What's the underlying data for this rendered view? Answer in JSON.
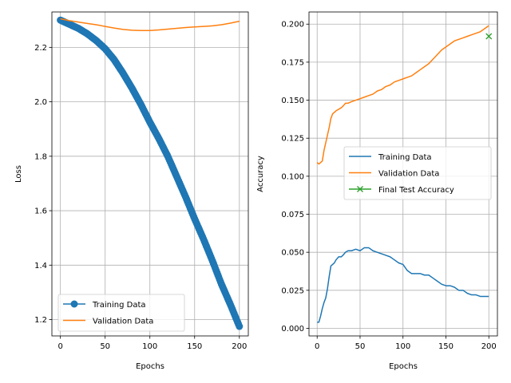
{
  "chart_data": [
    {
      "type": "line",
      "xlabel": "Epochs",
      "ylabel": "Loss",
      "xlim": [
        -9.5,
        210
      ],
      "ylim": [
        1.14,
        2.33
      ],
      "xticks": [
        0,
        50,
        100,
        150,
        200
      ],
      "yticks": [
        1.2,
        1.4,
        1.6,
        1.8,
        2.0,
        2.2
      ],
      "xtick_labels": [
        "0",
        "50",
        "100",
        "150",
        "200"
      ],
      "ytick_labels": [
        "1.2",
        "1.4",
        "1.6",
        "1.8",
        "2.0",
        "2.2"
      ],
      "grid": true,
      "legend_position": "lower-left",
      "series": [
        {
          "name": "Training Data",
          "color": "#1f77b4",
          "style": "line-circle-markers",
          "x": [
            0,
            10,
            20,
            30,
            40,
            50,
            60,
            70,
            80,
            90,
            100,
            110,
            120,
            130,
            140,
            150,
            160,
            170,
            180,
            190,
            200
          ],
          "y": [
            2.3,
            2.285,
            2.27,
            2.25,
            2.225,
            2.195,
            2.155,
            2.105,
            2.05,
            1.99,
            1.925,
            1.865,
            1.8,
            1.725,
            1.65,
            1.57,
            1.495,
            1.415,
            1.33,
            1.255,
            1.175
          ]
        },
        {
          "name": "Validation Data",
          "color": "#ff7f0e",
          "style": "line",
          "x": [
            0,
            10,
            20,
            30,
            40,
            50,
            60,
            70,
            80,
            90,
            100,
            110,
            120,
            130,
            140,
            150,
            160,
            170,
            180,
            190,
            200
          ],
          "y": [
            2.305,
            2.298,
            2.293,
            2.288,
            2.283,
            2.277,
            2.271,
            2.266,
            2.263,
            2.262,
            2.262,
            2.264,
            2.267,
            2.27,
            2.273,
            2.275,
            2.277,
            2.279,
            2.283,
            2.289,
            2.296
          ]
        }
      ]
    },
    {
      "type": "line",
      "xlabel": "Epochs",
      "ylabel": "Accuracy",
      "xlim": [
        -9.5,
        210
      ],
      "ylim": [
        -0.005,
        0.208
      ],
      "xticks": [
        0,
        50,
        100,
        150,
        200
      ],
      "yticks": [
        0.0,
        0.025,
        0.05,
        0.075,
        0.1,
        0.125,
        0.15,
        0.175,
        0.2
      ],
      "xtick_labels": [
        "0",
        "50",
        "100",
        "150",
        "200"
      ],
      "ytick_labels": [
        "0.000",
        "0.025",
        "0.050",
        "0.075",
        "0.100",
        "0.125",
        "0.150",
        "0.175",
        "0.200"
      ],
      "grid": true,
      "legend_position": "center-right",
      "series": [
        {
          "name": "Training Data",
          "color": "#1f77b4",
          "style": "line",
          "x": [
            0,
            2,
            4,
            6,
            8,
            10,
            12,
            14,
            16,
            18,
            20,
            22,
            25,
            28,
            30,
            33,
            36,
            40,
            45,
            50,
            55,
            60,
            65,
            70,
            75,
            80,
            85,
            90,
            95,
            100,
            105,
            110,
            115,
            120,
            125,
            130,
            135,
            140,
            145,
            150,
            155,
            160,
            165,
            170,
            175,
            180,
            185,
            190,
            195,
            200
          ],
          "y": [
            0.004,
            0.004,
            0.008,
            0.013,
            0.017,
            0.02,
            0.026,
            0.034,
            0.041,
            0.042,
            0.043,
            0.045,
            0.047,
            0.047,
            0.048,
            0.05,
            0.051,
            0.051,
            0.052,
            0.051,
            0.053,
            0.053,
            0.051,
            0.05,
            0.049,
            0.048,
            0.047,
            0.045,
            0.043,
            0.042,
            0.038,
            0.036,
            0.036,
            0.036,
            0.035,
            0.035,
            0.033,
            0.031,
            0.029,
            0.028,
            0.028,
            0.027,
            0.025,
            0.025,
            0.023,
            0.022,
            0.022,
            0.021,
            0.021,
            0.021
          ]
        },
        {
          "name": "Validation Data",
          "color": "#ff7f0e",
          "style": "line",
          "x": [
            0,
            2,
            4,
            6,
            8,
            10,
            12,
            14,
            16,
            18,
            20,
            22,
            25,
            28,
            30,
            33,
            36,
            40,
            45,
            50,
            55,
            60,
            65,
            70,
            75,
            80,
            85,
            90,
            95,
            100,
            105,
            110,
            115,
            120,
            125,
            130,
            135,
            140,
            145,
            150,
            155,
            160,
            165,
            170,
            175,
            180,
            185,
            190,
            195,
            200
          ],
          "y": [
            0.109,
            0.108,
            0.109,
            0.11,
            0.117,
            0.122,
            0.127,
            0.132,
            0.138,
            0.141,
            0.142,
            0.143,
            0.144,
            0.145,
            0.146,
            0.148,
            0.148,
            0.149,
            0.15,
            0.151,
            0.152,
            0.153,
            0.154,
            0.156,
            0.157,
            0.159,
            0.16,
            0.162,
            0.163,
            0.164,
            0.165,
            0.166,
            0.168,
            0.17,
            0.172,
            0.174,
            0.177,
            0.18,
            0.183,
            0.185,
            0.187,
            0.189,
            0.19,
            0.191,
            0.192,
            0.193,
            0.194,
            0.195,
            0.197,
            0.199
          ]
        },
        {
          "name": "Final Test Accuracy",
          "color": "#2ca02c",
          "style": "x-marker",
          "x": [
            200
          ],
          "y": [
            0.192
          ]
        }
      ]
    }
  ]
}
